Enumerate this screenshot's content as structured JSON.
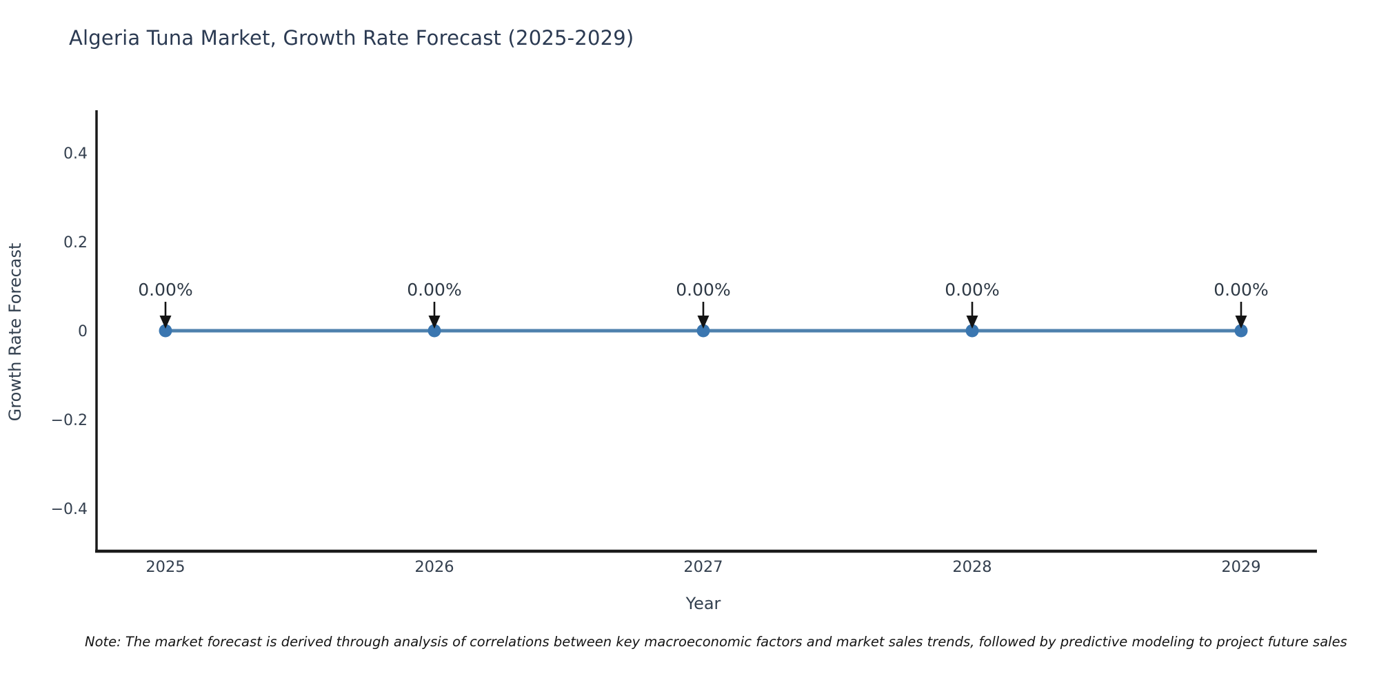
{
  "chart": {
    "note": "Note: The market forecast is derived through analysis of correlations between key macroeconomic factors and market sales trends, followed by predictive modeling to project future sales"
  },
  "chart_data": {
    "type": "line",
    "title": "Algeria Tuna Market, Growth Rate Forecast (2025-2029)",
    "xlabel": "Year",
    "ylabel": "Growth Rate Forecast",
    "x": [
      2025,
      2026,
      2027,
      2028,
      2029
    ],
    "series": [
      {
        "name": "Growth Rate Forecast",
        "values": [
          0,
          0,
          0,
          0,
          0
        ]
      }
    ],
    "point_labels": [
      "0.00%",
      "0.00%",
      "0.00%",
      "0.00%",
      "0.00%"
    ],
    "yticks": [
      0.4,
      0.2,
      0,
      -0.2,
      -0.4
    ],
    "ytick_labels": [
      "0.4",
      "0.2",
      "0",
      "−0.2",
      "−0.4"
    ],
    "ylim": [
      -0.5,
      0.5
    ],
    "grid": false,
    "legend": "none",
    "colors": {
      "line": "#4e81ad",
      "marker": "#3a76b0",
      "arrow": "#131313",
      "spine": "#1a1a1a",
      "tick_text": "#333f4e"
    }
  }
}
